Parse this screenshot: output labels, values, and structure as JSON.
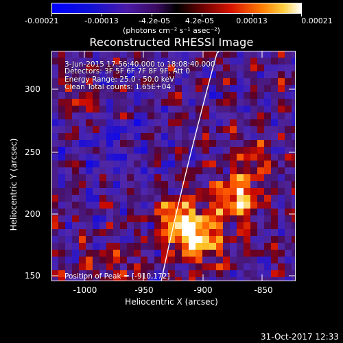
{
  "colorbar": {
    "tick_labels": [
      "-0.00021",
      "-0.00013",
      "-4.2e-05",
      "4.2e-05",
      "0.00013",
      "0.00021"
    ],
    "unit": "(photons cm⁻² s⁻¹ asec⁻²)"
  },
  "title": "Reconstructed RHESSI Image",
  "info": {
    "time": "3-Jun-2015 17:56:40.000 to 18:08:40.000",
    "detectors": "Detectors: 3F 5F 6F 7F 8F 9F, Att 0",
    "energy": "Energy Range: 25.0 - 50.0 keV",
    "clean": "Clean     Total counts: 1.65E+04"
  },
  "peak": "Position of Peak = [-910,172]",
  "axes": {
    "xlabel": "Heliocentric X (arcsec)",
    "ylabel": "Heliocentric Y (arcsec)",
    "xticks": [
      "-1000",
      "-950",
      "-900",
      "-850"
    ],
    "yticks": [
      "300",
      "250",
      "200",
      "150"
    ]
  },
  "footer_date": "31-Oct-2017 12:33"
}
